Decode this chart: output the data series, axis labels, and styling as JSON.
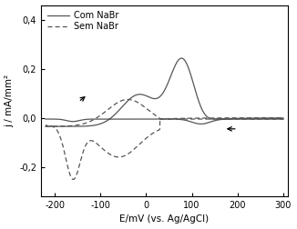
{
  "xlim": [
    -230,
    310
  ],
  "ylim": [
    -0.32,
    0.46
  ],
  "xticks": [
    -200,
    -100,
    0,
    100,
    200,
    300
  ],
  "yticks": [
    -0.2,
    0.0,
    0.2,
    0.4
  ],
  "yticklabels": [
    "-0,2",
    "0,0",
    "0,2",
    "0,4"
  ],
  "xticklabels": [
    "-200",
    "-100",
    "0",
    "100",
    "200",
    "300"
  ],
  "xlabel": "E/mV (vs. Ag/AgCl)",
  "ylabel": "j / mA/mm²",
  "legend_entries": [
    "Com NaBr",
    "Sem NaBr"
  ],
  "line_color": "#555555",
  "background_color": "#ffffff"
}
